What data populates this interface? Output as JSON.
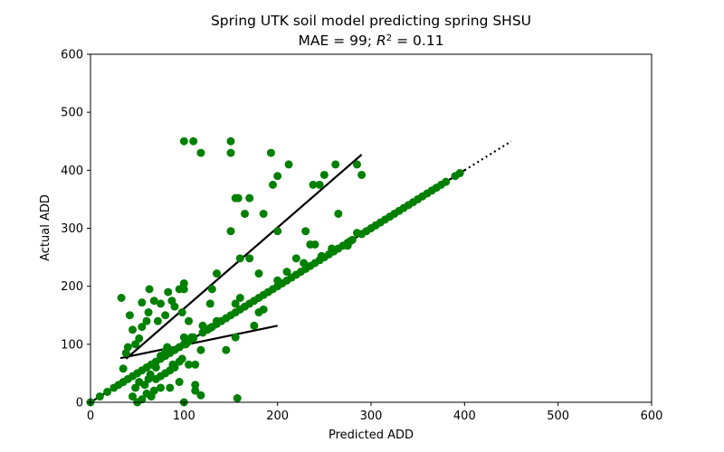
{
  "chart_data": {
    "type": "scatter",
    "title_line1": "Spring UTK soil model predicting spring SHSU",
    "title_line2_prefix": "MAE = 99; ",
    "title_line2_r": "R",
    "title_line2_sup": "2",
    "title_line2_suffix": " = 0.11",
    "xlabel": "Predicted ADD",
    "ylabel": "Actual ADD",
    "xlim": [
      0,
      600
    ],
    "ylim": [
      0,
      600
    ],
    "xticks": [
      "0",
      "100",
      "200",
      "300",
      "400",
      "500",
      "600"
    ],
    "yticks": [
      "0",
      "100",
      "200",
      "300",
      "400",
      "500",
      "600"
    ],
    "grid": false,
    "point_color": "#008000",
    "line_color": "#000000",
    "points": [
      [
        0,
        0
      ],
      [
        10,
        10
      ],
      [
        18,
        18
      ],
      [
        25,
        25
      ],
      [
        30,
        30
      ],
      [
        35,
        35
      ],
      [
        40,
        40
      ],
      [
        45,
        45
      ],
      [
        50,
        50
      ],
      [
        55,
        55
      ],
      [
        60,
        60
      ],
      [
        65,
        65
      ],
      [
        70,
        70
      ],
      [
        75,
        75
      ],
      [
        80,
        80
      ],
      [
        85,
        85
      ],
      [
        90,
        90
      ],
      [
        95,
        95
      ],
      [
        100,
        100
      ],
      [
        105,
        105
      ],
      [
        110,
        110
      ],
      [
        120,
        120
      ],
      [
        125,
        125
      ],
      [
        130,
        130
      ],
      [
        135,
        135
      ],
      [
        140,
        140
      ],
      [
        145,
        145
      ],
      [
        150,
        150
      ],
      [
        155,
        155
      ],
      [
        160,
        160
      ],
      [
        165,
        165
      ],
      [
        170,
        170
      ],
      [
        175,
        175
      ],
      [
        180,
        180
      ],
      [
        185,
        185
      ],
      [
        190,
        190
      ],
      [
        195,
        195
      ],
      [
        200,
        200
      ],
      [
        205,
        205
      ],
      [
        210,
        210
      ],
      [
        215,
        215
      ],
      [
        220,
        220
      ],
      [
        225,
        225
      ],
      [
        230,
        230
      ],
      [
        235,
        235
      ],
      [
        240,
        240
      ],
      [
        245,
        245
      ],
      [
        250,
        250
      ],
      [
        255,
        255
      ],
      [
        260,
        260
      ],
      [
        265,
        265
      ],
      [
        270,
        270
      ],
      [
        275,
        275
      ],
      [
        280,
        280
      ],
      [
        290,
        290
      ],
      [
        295,
        295
      ],
      [
        305,
        305
      ],
      [
        310,
        310
      ],
      [
        320,
        320
      ],
      [
        330,
        330
      ],
      [
        340,
        340
      ],
      [
        345,
        345
      ],
      [
        355,
        355
      ],
      [
        360,
        360
      ],
      [
        365,
        365
      ],
      [
        375,
        375
      ],
      [
        380,
        380
      ],
      [
        390,
        390
      ],
      [
        395,
        395
      ],
      [
        33,
        180
      ],
      [
        42,
        150
      ],
      [
        45,
        125
      ],
      [
        40,
        95
      ],
      [
        48,
        100
      ],
      [
        52,
        110
      ],
      [
        55,
        130
      ],
      [
        55,
        172
      ],
      [
        60,
        140
      ],
      [
        62,
        155
      ],
      [
        63,
        195
      ],
      [
        68,
        175
      ],
      [
        72,
        140
      ],
      [
        75,
        170
      ],
      [
        80,
        150
      ],
      [
        83,
        190
      ],
      [
        87,
        175
      ],
      [
        90,
        165
      ],
      [
        95,
        195
      ],
      [
        98,
        155
      ],
      [
        100,
        205
      ],
      [
        100,
        195
      ],
      [
        105,
        140
      ],
      [
        100,
        112
      ],
      [
        108,
        112
      ],
      [
        118,
        90
      ],
      [
        112,
        65
      ],
      [
        105,
        65
      ],
      [
        98,
        75
      ],
      [
        95,
        70
      ],
      [
        90,
        60
      ],
      [
        88,
        65
      ],
      [
        85,
        55
      ],
      [
        80,
        50
      ],
      [
        75,
        45
      ],
      [
        70,
        40
      ],
      [
        68,
        20
      ],
      [
        65,
        10
      ],
      [
        60,
        15
      ],
      [
        55,
        5
      ],
      [
        50,
        0
      ],
      [
        45,
        10
      ],
      [
        48,
        25
      ],
      [
        52,
        35
      ],
      [
        58,
        30
      ],
      [
        62,
        40
      ],
      [
        64,
        48
      ],
      [
        70,
        60
      ],
      [
        75,
        80
      ],
      [
        80,
        88
      ],
      [
        82,
        95
      ],
      [
        35,
        58
      ],
      [
        38,
        85
      ],
      [
        75,
        25
      ],
      [
        85,
        25
      ],
      [
        95,
        35
      ],
      [
        100,
        0
      ],
      [
        112,
        20
      ],
      [
        118,
        12
      ],
      [
        112,
        30
      ],
      [
        100,
        450
      ],
      [
        110,
        450
      ],
      [
        118,
        430
      ],
      [
        150,
        450
      ],
      [
        150,
        430
      ],
      [
        155,
        352
      ],
      [
        158,
        352
      ],
      [
        170,
        352
      ],
      [
        165,
        325
      ],
      [
        185,
        325
      ],
      [
        150,
        295
      ],
      [
        200,
        295
      ],
      [
        195,
        375
      ],
      [
        193,
        430
      ],
      [
        200,
        390
      ],
      [
        212,
        410
      ],
      [
        238,
        375
      ],
      [
        245,
        375
      ],
      [
        250,
        392
      ],
      [
        262,
        410
      ],
      [
        265,
        325
      ],
      [
        290,
        392
      ],
      [
        285,
        410
      ],
      [
        230,
        295
      ],
      [
        235,
        272
      ],
      [
        240,
        272
      ],
      [
        180,
        222
      ],
      [
        210,
        225
      ],
      [
        220,
        248
      ],
      [
        185,
        160
      ],
      [
        180,
        155
      ],
      [
        175,
        132
      ],
      [
        160,
        248
      ],
      [
        170,
        248
      ],
      [
        145,
        90
      ],
      [
        155,
        112
      ],
      [
        135,
        222
      ],
      [
        130,
        195
      ],
      [
        128,
        170
      ],
      [
        120,
        132
      ],
      [
        135,
        140
      ],
      [
        155,
        170
      ],
      [
        160,
        180
      ],
      [
        200,
        210
      ],
      [
        228,
        240
      ],
      [
        247,
        252
      ],
      [
        258,
        265
      ],
      [
        278,
        278
      ],
      [
        275,
        270
      ],
      [
        285,
        292
      ],
      [
        300,
        300
      ],
      [
        315,
        315
      ],
      [
        325,
        325
      ],
      [
        335,
        335
      ],
      [
        350,
        350
      ],
      [
        370,
        370
      ],
      [
        157,
        7
      ],
      [
        102,
        100
      ],
      [
        110,
        112
      ],
      [
        128,
        128
      ]
    ],
    "lines": [
      {
        "style": "solid",
        "x": [
          38,
          290
        ],
        "y": [
          75,
          427
        ]
      },
      {
        "style": "solid",
        "x": [
          32,
          200
        ],
        "y": [
          76,
          132
        ]
      },
      {
        "style": "solid",
        "x": [
          0,
          400
        ],
        "y": [
          0,
          400
        ]
      },
      {
        "style": "dotted",
        "x": [
          400,
          450
        ],
        "y": [
          400,
          450
        ]
      }
    ]
  }
}
